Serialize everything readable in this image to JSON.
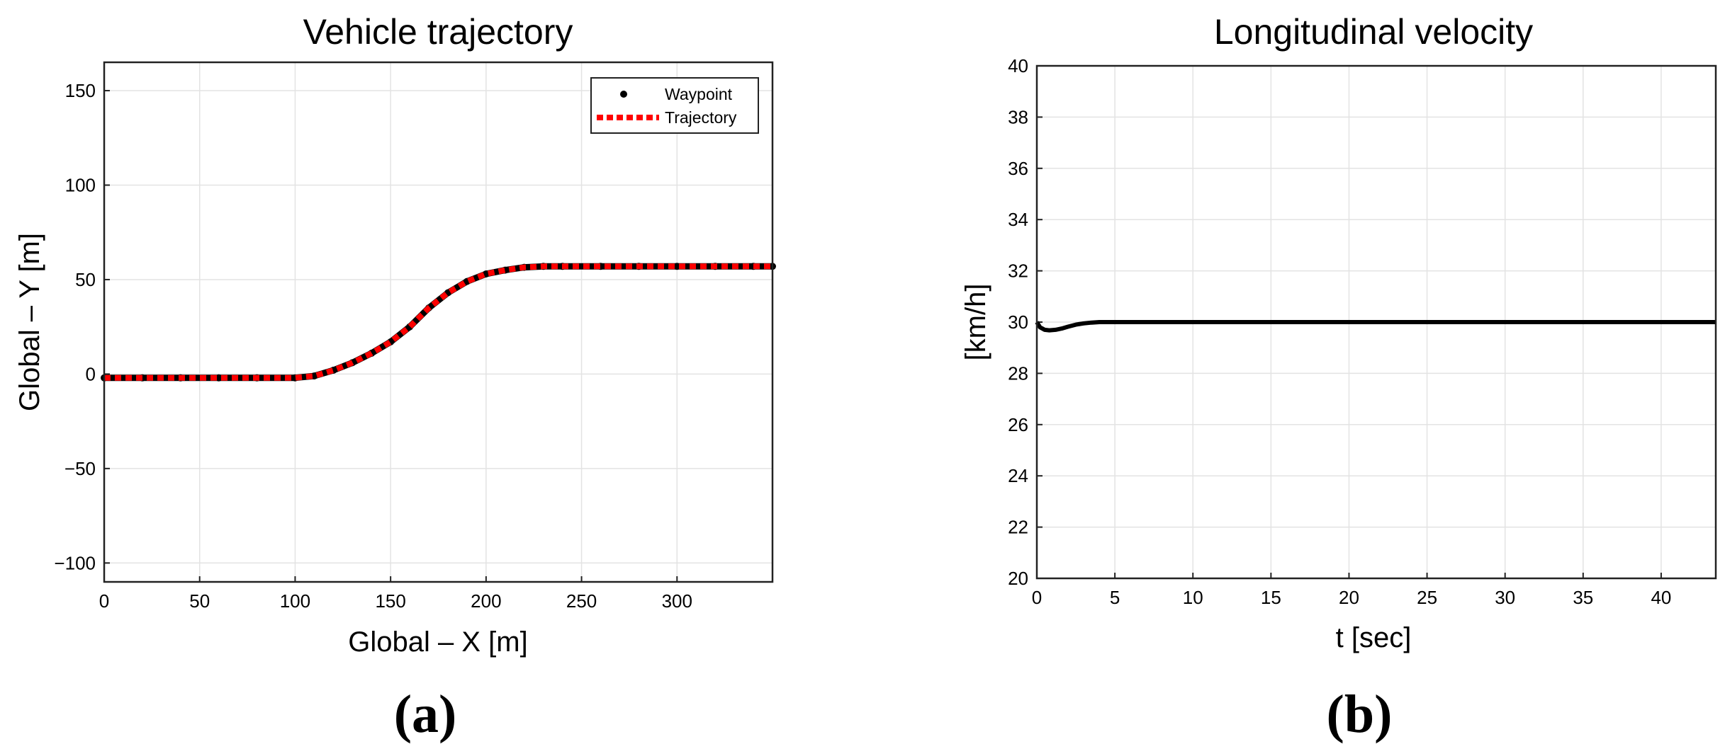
{
  "chart_data": [
    {
      "type": "line",
      "title": "Vehicle trajectory",
      "xlabel": "Global – X [m]",
      "ylabel": "Global – Y [m]",
      "xlim": [
        0,
        350
      ],
      "ylim": [
        -110,
        165
      ],
      "xticks": [
        0,
        50,
        100,
        150,
        200,
        250,
        300
      ],
      "xtick_labels": [
        "0",
        "50",
        "100",
        "150",
        "200",
        "250",
        "300"
      ],
      "yticks": [
        -100,
        -50,
        0,
        50,
        100,
        150
      ],
      "ytick_labels": [
        "−100",
        "−50",
        "0",
        "50",
        "100",
        "150"
      ],
      "grid": true,
      "legend": {
        "position": "top-right",
        "entries": [
          "Waypoint",
          "Trajectory"
        ]
      },
      "series": [
        {
          "name": "Waypoint",
          "style": "dots",
          "color": "#000000",
          "x": [
            0,
            20,
            40,
            60,
            80,
            100,
            110,
            120,
            130,
            140,
            150,
            160,
            170,
            180,
            190,
            200,
            210,
            220,
            230,
            240,
            260,
            280,
            300,
            320,
            340,
            350
          ],
          "y": [
            -2,
            -2,
            -2,
            -2,
            -2,
            -2,
            -1,
            2,
            6,
            11,
            17,
            25,
            35,
            43,
            49,
            53,
            55,
            56.5,
            57,
            57,
            57,
            57,
            57,
            57,
            57,
            57
          ]
        },
        {
          "name": "Trajectory",
          "style": "dashed",
          "color": "#ff0000",
          "x": [
            0,
            20,
            40,
            60,
            80,
            100,
            110,
            120,
            130,
            140,
            150,
            160,
            170,
            180,
            190,
            200,
            210,
            220,
            230,
            240,
            260,
            280,
            300,
            320,
            340,
            350
          ],
          "y": [
            -2,
            -2,
            -2,
            -2,
            -2,
            -2,
            -1,
            2,
            6,
            11,
            17,
            25,
            35,
            43,
            49,
            53,
            55,
            56.5,
            57,
            57,
            57,
            57,
            57,
            57,
            57,
            57
          ]
        }
      ],
      "panel_label": "(a)"
    },
    {
      "type": "line",
      "title": "Longitudinal velocity",
      "xlabel": "t [sec]",
      "ylabel": "[km/h]",
      "xlim": [
        0,
        43.5
      ],
      "ylim": [
        20,
        40
      ],
      "xticks": [
        0,
        5,
        10,
        15,
        20,
        25,
        30,
        35,
        40
      ],
      "xtick_labels": [
        "0",
        "5",
        "10",
        "15",
        "20",
        "25",
        "30",
        "35",
        "40"
      ],
      "yticks": [
        20,
        22,
        24,
        26,
        28,
        30,
        32,
        34,
        36,
        38,
        40
      ],
      "ytick_labels": [
        "20",
        "22",
        "24",
        "26",
        "28",
        "30",
        "32",
        "34",
        "36",
        "38",
        "40"
      ],
      "grid": true,
      "series": [
        {
          "name": "Longitudinal velocity",
          "color": "#000000",
          "x": [
            0,
            0.2,
            0.5,
            0.8,
            1.2,
            1.6,
            2.0,
            2.5,
            3.0,
            3.5,
            4.0,
            4.5,
            5.0,
            8,
            12,
            16,
            20,
            24,
            28,
            32,
            36,
            40,
            43.5
          ],
          "y": [
            30.0,
            29.8,
            29.7,
            29.68,
            29.7,
            29.75,
            29.82,
            29.9,
            29.95,
            29.98,
            30.0,
            30.0,
            30.0,
            30.0,
            30.0,
            30.0,
            30.0,
            30.0,
            30.0,
            30.0,
            30.0,
            30.0,
            30.0
          ]
        }
      ],
      "panel_label": "(b)"
    }
  ]
}
